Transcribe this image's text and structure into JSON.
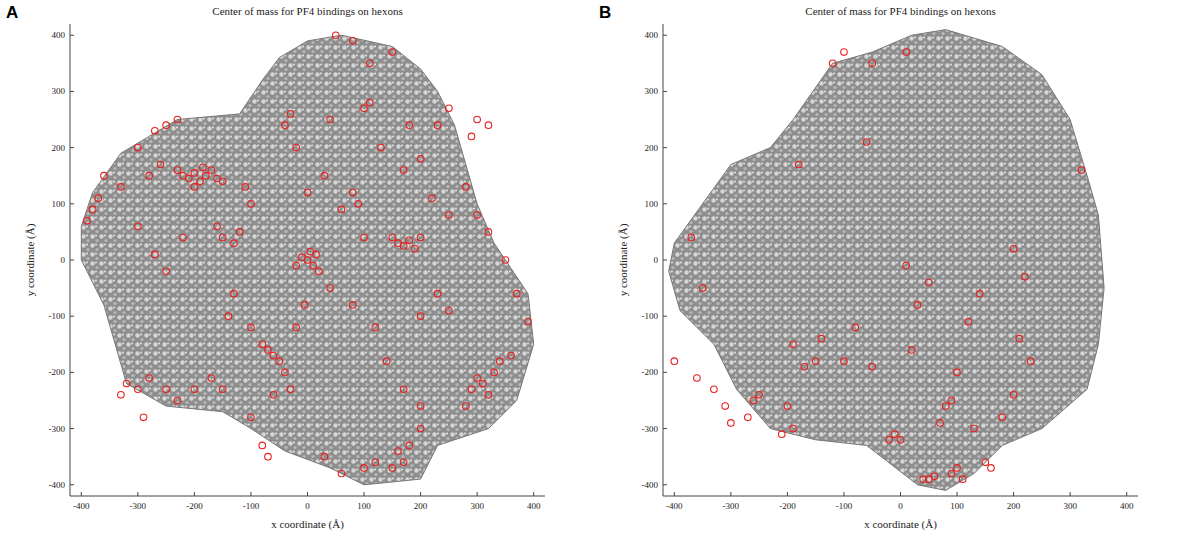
{
  "chart_data": [
    {
      "type": "scatter",
      "panel": "A",
      "title": "Center of mass for PF4 bindings on hexons",
      "x_label": "x coordinate (Å)",
      "y_label": "y coordinate (Å)",
      "color": "#e8201f",
      "marker": "open-circle",
      "xlim": [
        -420,
        420
      ],
      "ylim": [
        -420,
        420
      ],
      "xticks": [
        -400,
        -300,
        -200,
        -100,
        0,
        100,
        200,
        300,
        400
      ],
      "yticks": [
        -400,
        -300,
        -200,
        -100,
        0,
        100,
        200,
        300,
        400
      ],
      "x": [
        -220,
        -210,
        -200,
        -190,
        -180,
        -170,
        -160,
        -230,
        -200,
        -185,
        -150,
        -250,
        -230,
        -270,
        -300,
        -260,
        -280,
        -330,
        -370,
        -380,
        -360,
        -390,
        0,
        10,
        -10,
        20,
        5,
        -20,
        15,
        160,
        170,
        180,
        190,
        150,
        200,
        -60,
        -50,
        -70,
        -40,
        -30,
        -60,
        -80,
        290,
        310,
        320,
        300,
        330,
        280,
        340,
        360,
        390,
        160,
        170,
        180,
        150,
        120,
        100,
        200,
        60,
        30,
        -130,
        -100,
        -140,
        -40,
        -30,
        100,
        110,
        130,
        170,
        200,
        230,
        250,
        -20,
        40,
        80,
        50,
        110,
        150,
        180,
        -150,
        -130,
        -120,
        -160,
        -110,
        -100,
        90,
        80,
        100,
        60,
        40,
        80,
        120,
        140,
        170,
        200,
        -320,
        -300,
        -280,
        -290,
        -250,
        -200,
        -170,
        -230,
        -330,
        300,
        320,
        290,
        280,
        300,
        320,
        350,
        370,
        250,
        220,
        -270,
        -250,
        -220,
        -300,
        -20,
        -5,
        30,
        0,
        200,
        230,
        250,
        -150,
        -100,
        -80,
        -70
      ],
      "y": [
        150,
        145,
        155,
        140,
        150,
        160,
        145,
        160,
        130,
        165,
        140,
        240,
        250,
        230,
        200,
        170,
        150,
        130,
        110,
        90,
        150,
        70,
        0,
        -10,
        5,
        -20,
        15,
        -10,
        10,
        30,
        25,
        35,
        20,
        40,
        40,
        -170,
        -180,
        -160,
        -200,
        -230,
        -240,
        -150,
        -230,
        -220,
        -240,
        -210,
        -200,
        -260,
        -180,
        -170,
        -110,
        -340,
        -360,
        -330,
        -370,
        -360,
        -370,
        -300,
        -380,
        -350,
        -60,
        -120,
        -100,
        240,
        260,
        270,
        280,
        200,
        160,
        180,
        240,
        270,
        200,
        250,
        390,
        400,
        350,
        370,
        240,
        40,
        30,
        50,
        60,
        130,
        100,
        100,
        120,
        40,
        90,
        -50,
        -80,
        -120,
        -180,
        -230,
        -260,
        -220,
        -230,
        -210,
        -280,
        -230,
        -230,
        -210,
        -250,
        -240,
        250,
        240,
        220,
        130,
        80,
        50,
        0,
        -60,
        80,
        110,
        10,
        -20,
        40,
        60,
        -120,
        -80,
        150,
        120,
        -100,
        -60,
        -90,
        -230,
        -280,
        -330,
        -350
      ]
    },
    {
      "type": "scatter",
      "panel": "B",
      "title": "Center of mass for PF4 bindings on hexons",
      "x_label": "x coordinate (Å)",
      "y_label": "y coordinate (Å)",
      "color": "#e8201f",
      "marker": "open-circle",
      "xlim": [
        -420,
        420
      ],
      "ylim": [
        -420,
        420
      ],
      "xticks": [
        -400,
        -300,
        -200,
        -100,
        0,
        100,
        200,
        300,
        400
      ],
      "yticks": [
        -400,
        -300,
        -200,
        -100,
        0,
        100,
        200,
        300,
        400
      ],
      "x": [
        -400,
        -360,
        -350,
        -370,
        -330,
        -310,
        -300,
        -270,
        -260,
        -250,
        -210,
        -190,
        -200,
        -190,
        -180,
        -170,
        -150,
        -140,
        -120,
        -100,
        -100,
        -80,
        -60,
        -50,
        -50,
        0,
        -10,
        -20,
        10,
        20,
        30,
        50,
        70,
        80,
        90,
        90,
        100,
        110,
        120,
        140,
        150,
        160,
        180,
        200,
        200,
        220,
        210,
        230,
        10,
        320,
        40,
        50,
        60,
        100,
        130
      ],
      "y": [
        -180,
        -210,
        -50,
        40,
        -230,
        -260,
        -290,
        -280,
        -250,
        -240,
        -310,
        -300,
        -260,
        -150,
        170,
        -190,
        -180,
        -140,
        350,
        370,
        -180,
        -120,
        210,
        350,
        -190,
        -320,
        -310,
        -320,
        -10,
        -160,
        -80,
        -40,
        -290,
        -260,
        -250,
        -380,
        -370,
        -390,
        -110,
        -60,
        -360,
        -370,
        -280,
        -240,
        20,
        -30,
        -140,
        -180,
        370,
        160,
        -390,
        -390,
        -385,
        -200,
        -300
      ]
    }
  ]
}
